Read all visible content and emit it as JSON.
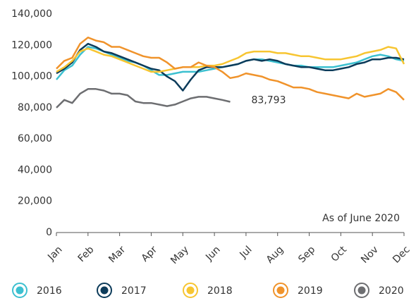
{
  "chart_data": {
    "type": "line",
    "categories": [
      "Jan",
      null,
      null,
      null,
      "Feb",
      null,
      null,
      null,
      "Mar",
      null,
      null,
      null,
      "Apr",
      null,
      null,
      null,
      "May",
      null,
      null,
      null,
      "Jun",
      null,
      null,
      null,
      "Jul",
      null,
      null,
      null,
      "Aug",
      null,
      null,
      null,
      "Sep",
      null,
      null,
      null,
      "Oct",
      null,
      null,
      null,
      "Nov",
      null,
      null,
      null,
      "Dec"
    ],
    "ylim": [
      0,
      140000
    ],
    "yticks": [
      0,
      {
        "value": 20000,
        "label": "20,000"
      },
      {
        "value": 40000,
        "label": "40,000"
      },
      {
        "value": 60000,
        "label": "60,000"
      },
      {
        "value": 80000,
        "label": "80,000"
      },
      {
        "value": 100000,
        "label": "100,000"
      },
      {
        "value": 120000,
        "label": "120,000"
      },
      {
        "value": 140000,
        "label": "140,000"
      }
    ],
    "grid": false,
    "legend": "bottom",
    "annotations": [
      "As of June 2020"
    ],
    "series": [
      {
        "name": "2016",
        "color": "#3cc0d0",
        "values": [
          98000,
          104000,
          107000,
          114000,
          119000,
          118000,
          116000,
          114000,
          112000,
          110000,
          109000,
          107000,
          104000,
          101000,
          101000,
          102000,
          103000,
          103000,
          103000,
          104000,
          105000,
          106000,
          107000,
          108000,
          110000,
          111000,
          111000,
          110000,
          109000,
          108000,
          107000,
          107000,
          106000,
          106000,
          106000,
          106000,
          107000,
          108000,
          109000,
          111000,
          113000,
          114000,
          113000,
          111000,
          110000
        ]
      },
      {
        "name": "2017",
        "color": "#0c3b5a",
        "values": [
          102000,
          105000,
          109000,
          117000,
          121000,
          119000,
          116000,
          115000,
          113000,
          111000,
          109000,
          107000,
          105000,
          104000,
          100000,
          97000,
          91000,
          98000,
          104000,
          106000,
          106000,
          106000,
          107000,
          108000,
          110000,
          111000,
          110000,
          111000,
          110000,
          108000,
          107000,
          106000,
          106000,
          105000,
          104000,
          104000,
          105000,
          106000,
          108000,
          109000,
          111000,
          111000,
          112000,
          112000,
          111000
        ]
      },
      {
        "name": "2018",
        "color": "#f7c531",
        "values": [
          103000,
          106000,
          110000,
          116000,
          118000,
          116000,
          114000,
          113000,
          111000,
          109000,
          107000,
          105000,
          103000,
          103000,
          104000,
          105000,
          106000,
          106000,
          106000,
          107000,
          107000,
          108000,
          110000,
          112000,
          115000,
          116000,
          116000,
          116000,
          115000,
          115000,
          114000,
          113000,
          113000,
          112000,
          111000,
          111000,
          111000,
          112000,
          113000,
          115000,
          116000,
          117000,
          119000,
          118000,
          108000
        ]
      },
      {
        "name": "2019",
        "color": "#f0932b",
        "values": [
          105000,
          110000,
          112000,
          121000,
          125000,
          123000,
          122000,
          119000,
          119000,
          117000,
          115000,
          113000,
          112000,
          112000,
          109000,
          105000,
          106000,
          106000,
          109000,
          107000,
          106000,
          103000,
          99000,
          100000,
          102000,
          101000,
          100000,
          98000,
          97000,
          95000,
          93000,
          93000,
          92000,
          90000,
          89000,
          88000,
          87000,
          86000,
          89000,
          87000,
          88000,
          89000,
          92000,
          90000,
          85000
        ]
      },
      {
        "name": "2020",
        "color": "#6d6e71",
        "values": [
          80000,
          85000,
          83000,
          89000,
          92000,
          92000,
          91000,
          89000,
          89000,
          88000,
          84000,
          83000,
          83000,
          82000,
          81000,
          82000,
          84000,
          86000,
          87000,
          87000,
          86000,
          85000,
          83793,
          null,
          null,
          null,
          null,
          null,
          null,
          null,
          null,
          null,
          null,
          null,
          null,
          null,
          null,
          null,
          null,
          null,
          null,
          null,
          null,
          null,
          null
        ],
        "value_labels": [
          null,
          null,
          null,
          null,
          null,
          null,
          null,
          null,
          null,
          null,
          null,
          null,
          null,
          null,
          null,
          null,
          null,
          null,
          null,
          null,
          null,
          null,
          "83,793",
          null,
          null,
          null,
          null,
          null,
          null,
          null,
          null,
          null,
          null,
          null,
          null,
          null,
          null,
          null,
          null,
          null,
          null,
          null,
          null,
          null,
          null
        ]
      }
    ]
  }
}
